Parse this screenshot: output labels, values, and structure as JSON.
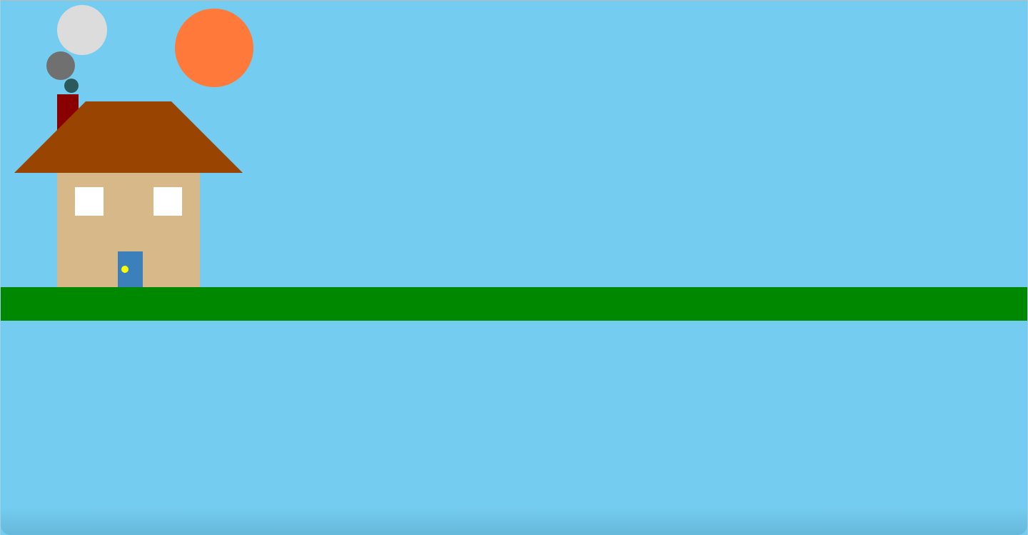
{
  "scene": {
    "colors": {
      "sky": "#74cdf0",
      "ground": "#008800",
      "sun": "#ff7a3a",
      "house_wall": "#d7b889",
      "roof": "#994400",
      "chimney": "#880000",
      "window": "#ffffff",
      "door": "#3b80bb",
      "door_knob": "#ffff00",
      "smoke_large": "#dcdcdc",
      "smoke_medium": "#707070",
      "smoke_small": "#2b5a5a"
    }
  }
}
